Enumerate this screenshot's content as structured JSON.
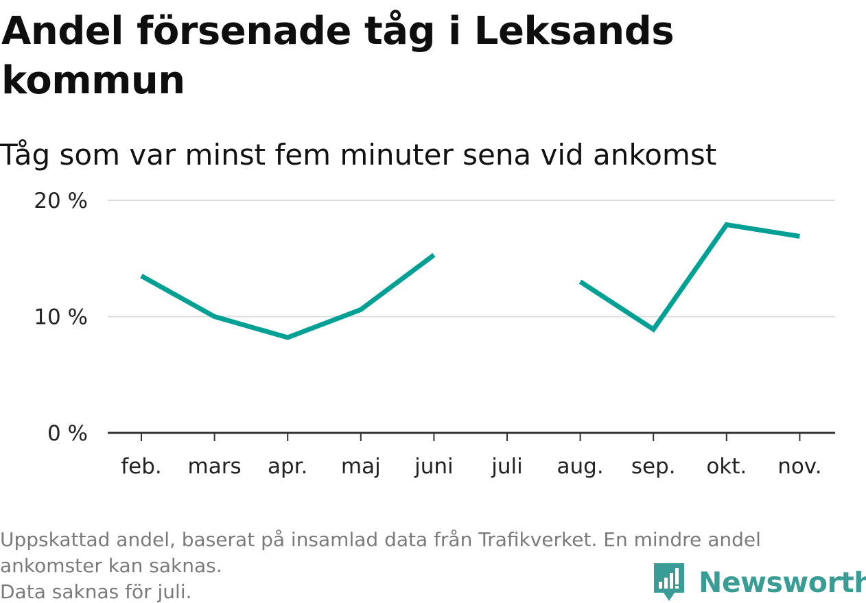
{
  "header": {
    "title": "Andel försenade tåg i Leksands kommun",
    "subtitle": "Tåg som var minst fem minuter sena vid ankomst"
  },
  "chart_data": {
    "type": "line",
    "categories": [
      "feb.",
      "mars",
      "apr.",
      "maj",
      "juni",
      "juli",
      "aug.",
      "sep.",
      "okt.",
      "nov."
    ],
    "series": [
      {
        "values": [
          13.5,
          10.0,
          8.2,
          10.6,
          15.3,
          null,
          13.0,
          8.9,
          17.9,
          16.9
        ]
      }
    ],
    "y_ticks": [
      {
        "value": 0,
        "label": "0 %"
      },
      {
        "value": 10,
        "label": "10 %"
      },
      {
        "value": 20,
        "label": "20 %"
      }
    ],
    "ylim": [
      0,
      20
    ],
    "grid": true,
    "line_color": "#00a095",
    "grid_color": "#dddddd",
    "axis_color": "#333333"
  },
  "footer": {
    "note_lines": [
      "Uppskattad andel, baserat på insamlad data från Trafikverket. En mindre andel",
      "ankomster kan saknas.",
      "Data saknas för juli."
    ],
    "brand": "Newsworthy",
    "brand_color": "#3a9d95",
    "brand_icon": "newsworthy-logo-icon"
  }
}
